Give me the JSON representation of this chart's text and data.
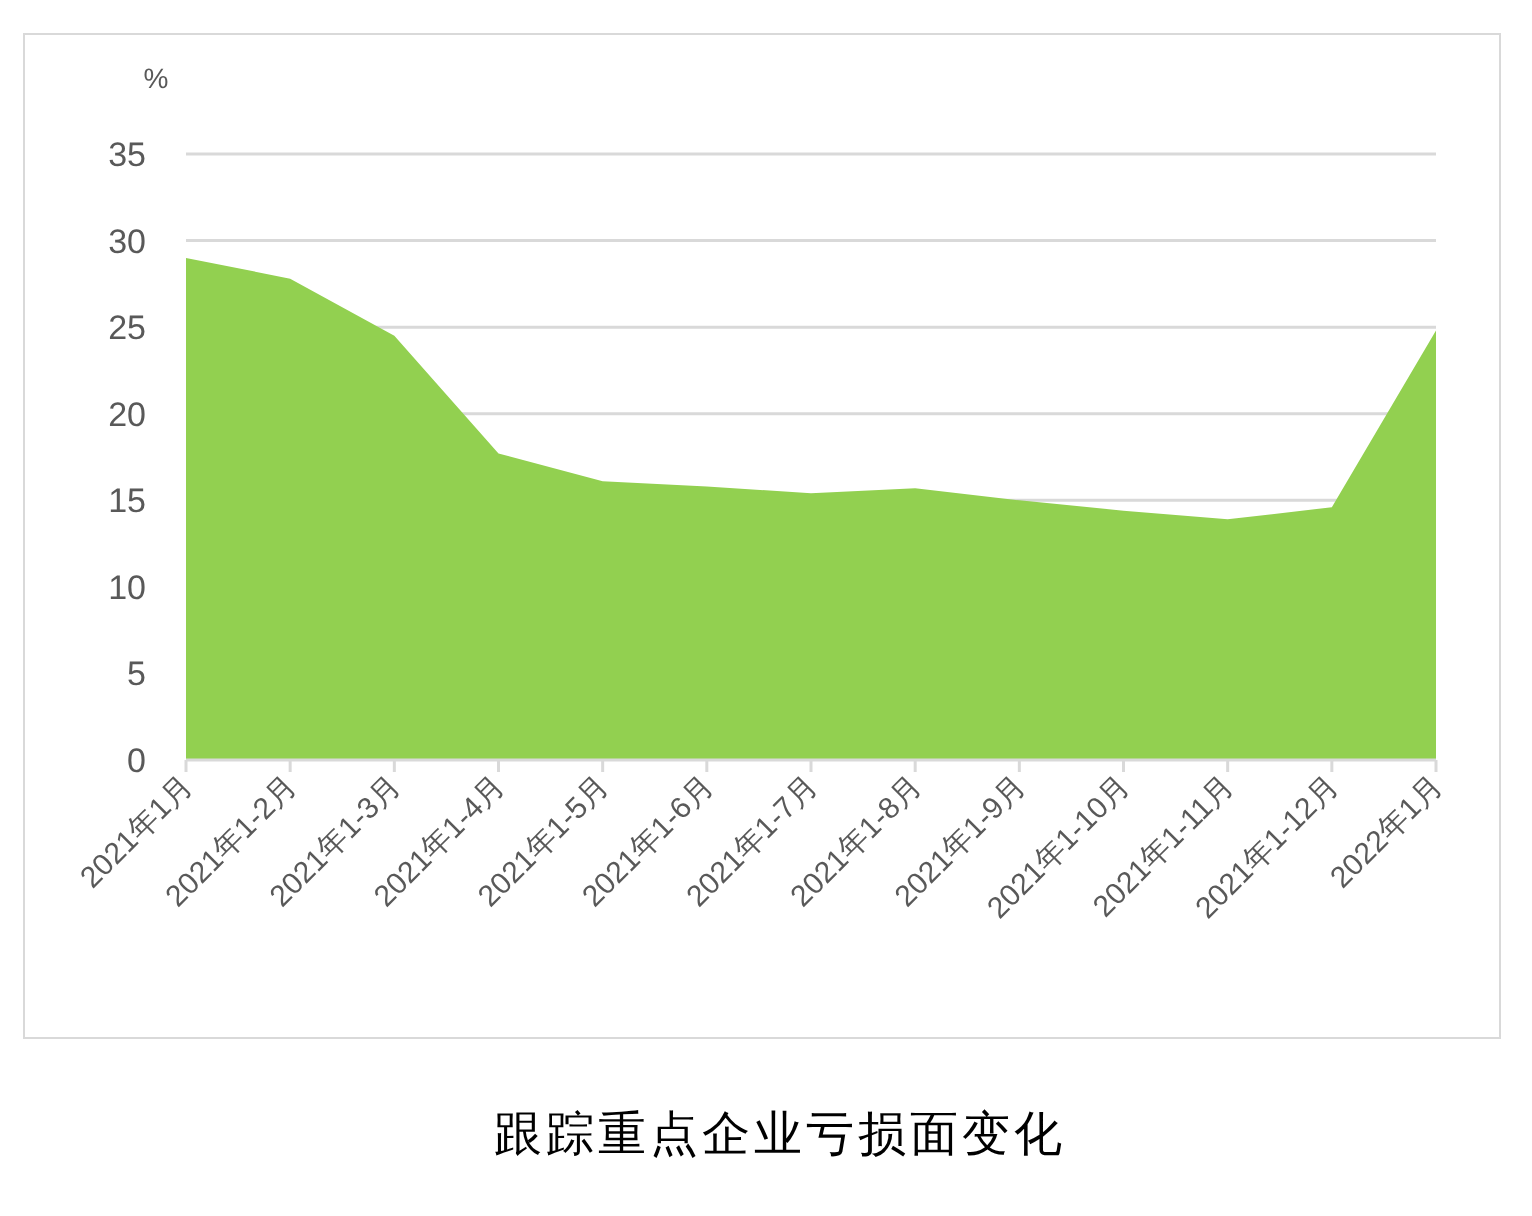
{
  "chart_data": {
    "type": "area",
    "title": "跟踪重点企业亏损面变化",
    "ylabel": "%",
    "categories": [
      "2021年1月",
      "2021年1-2月",
      "2021年1-3月",
      "2021年1-4月",
      "2021年1-5月",
      "2021年1-6月",
      "2021年1-7月",
      "2021年1-8月",
      "2021年1-9月",
      "2021年1-10月",
      "2021年1-11月",
      "2021年1-12月",
      "2022年1月"
    ],
    "values": [
      29.0,
      27.8,
      24.5,
      17.7,
      16.1,
      15.8,
      15.4,
      15.7,
      15.0,
      14.4,
      13.9,
      14.6,
      24.8
    ],
    "color": "#92d050",
    "ylim": [
      0,
      35
    ],
    "yticks": [
      0,
      5,
      10,
      15,
      20,
      25,
      30,
      35
    ],
    "grid": "y"
  }
}
